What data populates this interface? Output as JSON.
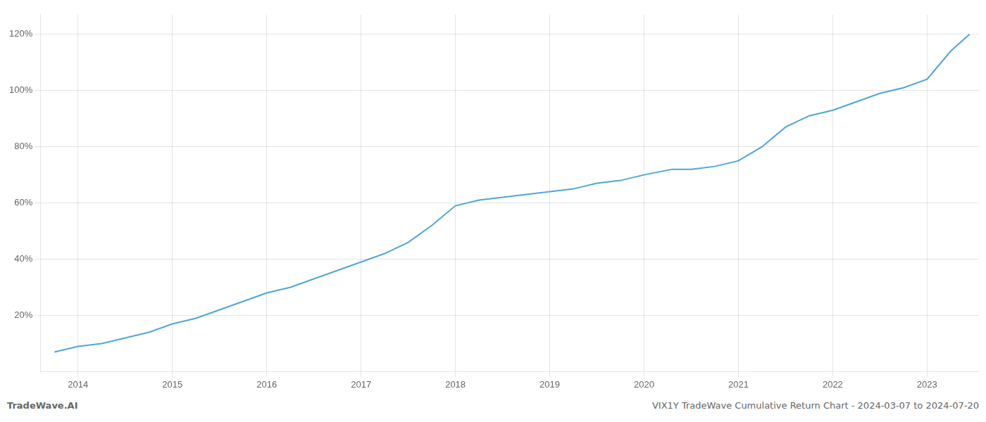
{
  "chart_data": {
    "type": "line",
    "title": "VIX1Y TradeWave Cumulative Return Chart - 2024-03-07 to 2024-07-20",
    "annotations": [
      "TradeWave.AI"
    ],
    "x": [
      2013.75,
      2014.0,
      2014.25,
      2014.5,
      2014.75,
      2015.0,
      2015.25,
      2015.5,
      2015.75,
      2016.0,
      2016.25,
      2016.5,
      2016.75,
      2017.0,
      2017.25,
      2017.5,
      2017.75,
      2018.0,
      2018.25,
      2018.5,
      2018.75,
      2019.0,
      2019.25,
      2019.5,
      2019.75,
      2020.0,
      2020.15,
      2020.3,
      2020.5,
      2020.75,
      2021.0,
      2021.25,
      2021.5,
      2021.75,
      2022.0,
      2022.25,
      2022.5,
      2022.75,
      2023.0,
      2023.25,
      2023.45
    ],
    "values": [
      0.07,
      0.09,
      0.1,
      0.12,
      0.14,
      0.17,
      0.19,
      0.22,
      0.25,
      0.28,
      0.3,
      0.33,
      0.36,
      0.39,
      0.42,
      0.46,
      0.52,
      0.59,
      0.61,
      0.62,
      0.63,
      0.64,
      0.65,
      0.67,
      0.68,
      0.7,
      0.71,
      0.72,
      0.72,
      0.73,
      0.75,
      0.8,
      0.87,
      0.91,
      0.93,
      0.96,
      0.99,
      1.01,
      1.04,
      1.14,
      1.2
    ],
    "color": "#4DA6D8",
    "xlim": [
      2013.6,
      2023.55
    ],
    "xticks": [
      2014,
      2015,
      2016,
      2017,
      2018,
      2019,
      2020,
      2021,
      2022,
      2023
    ],
    "ylim": [
      0.0,
      1.27
    ],
    "yticks": [
      {
        "value": 0.2,
        "label": "20%"
      },
      {
        "value": 0.4,
        "label": "40%"
      },
      {
        "value": 0.6,
        "label": "60%"
      },
      {
        "value": 0.8,
        "label": "80%"
      },
      {
        "value": 1.0,
        "label": "100%"
      },
      {
        "value": 1.2,
        "label": "120%"
      }
    ],
    "grid": true
  }
}
